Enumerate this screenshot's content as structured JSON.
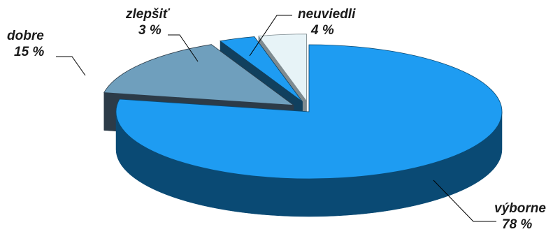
{
  "chart_data": {
    "type": "pie",
    "three_d": true,
    "legend": "none",
    "slices": [
      {
        "category": "výborne",
        "value": 78,
        "value_label": "78 %",
        "top_color": "#1e9cf2",
        "side_color": "#0a4a74",
        "exploded": false
      },
      {
        "category": "dobre",
        "value": 15,
        "value_label": "15 %",
        "top_color": "#6f9fbd",
        "side_color": "#2c3b48",
        "exploded": true
      },
      {
        "category": "zlepšiť",
        "value": 3,
        "value_label": "3 %",
        "top_color": "#1e9cf2",
        "side_color": "#11405e",
        "exploded": true
      },
      {
        "category": "neuviedli",
        "value": 4,
        "value_label": "4 %",
        "top_color": "#e7f3f7",
        "side_color": "#7f8b90",
        "exploded": true
      }
    ]
  }
}
